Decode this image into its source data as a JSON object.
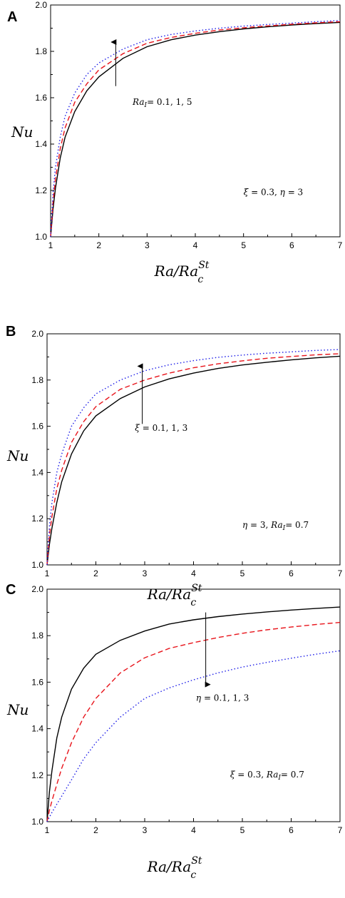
{
  "chart_data": [
    {
      "type": "line",
      "panel_label": "A",
      "xlabel": "Ra/Ra_c^St",
      "xlabel_main": "Ra/Ra",
      "xlabel_sub": "c",
      "xlabel_sup": "St",
      "ylabel": "Nu",
      "xlim": [
        1,
        7
      ],
      "ylim": [
        1.0,
        2.0
      ],
      "xticks": [
        "1",
        "2",
        "3",
        "4",
        "5",
        "6",
        "7"
      ],
      "yticks": [
        "1.0",
        "1.2",
        "1.4",
        "1.6",
        "1.8",
        "2.0"
      ],
      "annotation": {
        "var": "Ra",
        "sub": "I",
        "text": "= 0.1, 1, 5",
        "direction": "up"
      },
      "params": {
        "p1_sym": "ξ",
        "p1_text": " = 0.3,  ",
        "p2_sym": "η",
        "p2_sub": "",
        "p2_text": " = 3"
      },
      "x": [
        1,
        1.05,
        1.1,
        1.2,
        1.3,
        1.5,
        1.75,
        2,
        2.5,
        3,
        3.5,
        4,
        4.5,
        5,
        5.5,
        6,
        6.5,
        7
      ],
      "series": [
        {
          "color": "#000000",
          "dash": "solid",
          "values": [
            1.0,
            1.12,
            1.21,
            1.34,
            1.43,
            1.54,
            1.63,
            1.69,
            1.77,
            1.82,
            1.85,
            1.87,
            1.885,
            1.897,
            1.906,
            1.914,
            1.92,
            1.925
          ]
        },
        {
          "color": "#e8141b",
          "dash": "dashed",
          "values": [
            1.0,
            1.15,
            1.25,
            1.38,
            1.47,
            1.58,
            1.66,
            1.72,
            1.79,
            1.835,
            1.86,
            1.878,
            1.892,
            1.902,
            1.91,
            1.917,
            1.923,
            1.928
          ]
        },
        {
          "color": "#1d1de8",
          "dash": "dotted",
          "values": [
            1.0,
            1.19,
            1.3,
            1.43,
            1.52,
            1.62,
            1.7,
            1.75,
            1.81,
            1.85,
            1.873,
            1.888,
            1.9,
            1.909,
            1.916,
            1.922,
            1.928,
            1.933
          ]
        }
      ],
      "arrow": {
        "x": 2.35,
        "y_from": 1.65,
        "y_to": 1.84
      },
      "annotation_pos": {
        "x": 2.7,
        "y": 1.57
      },
      "params_pos": {
        "x": 5.0,
        "y": 1.18
      }
    },
    {
      "type": "line",
      "panel_label": "B",
      "xlabel": "Ra/Ra_c^St",
      "xlabel_main": "Ra/Ra",
      "xlabel_sub": "c",
      "xlabel_sup": "St",
      "ylabel": "Nu",
      "xlim": [
        1,
        7
      ],
      "ylim": [
        1.0,
        2.0
      ],
      "xticks": [
        "1",
        "2",
        "3",
        "4",
        "5",
        "6",
        "7"
      ],
      "yticks": [
        "1.0",
        "1.2",
        "1.4",
        "1.6",
        "1.8",
        "2.0"
      ],
      "annotation": {
        "var": "ξ",
        "sub": "",
        "text": " = 0.1, 1, 3",
        "direction": "up"
      },
      "params": {
        "p1_sym": "η",
        "p1_text": " = 3,  ",
        "p2_sym": "Ra",
        "p2_sub": "I",
        "p2_text": "= 0.7"
      },
      "x": [
        1,
        1.05,
        1.1,
        1.2,
        1.3,
        1.5,
        1.75,
        2,
        2.5,
        3,
        3.5,
        4,
        4.5,
        5,
        5.5,
        6,
        6.5,
        7
      ],
      "series": [
        {
          "color": "#000000",
          "dash": "solid",
          "values": [
            1.0,
            1.09,
            1.16,
            1.27,
            1.36,
            1.48,
            1.58,
            1.645,
            1.72,
            1.77,
            1.805,
            1.83,
            1.85,
            1.865,
            1.877,
            1.887,
            1.896,
            1.903
          ]
        },
        {
          "color": "#e8141b",
          "dash": "dashed",
          "values": [
            1.0,
            1.13,
            1.21,
            1.33,
            1.41,
            1.53,
            1.62,
            1.685,
            1.76,
            1.8,
            1.83,
            1.853,
            1.87,
            1.883,
            1.894,
            1.902,
            1.909,
            1.914
          ]
        },
        {
          "color": "#1d1de8",
          "dash": "dotted",
          "values": [
            1.0,
            1.17,
            1.27,
            1.4,
            1.48,
            1.6,
            1.68,
            1.74,
            1.8,
            1.84,
            1.866,
            1.884,
            1.898,
            1.908,
            1.916,
            1.922,
            1.928,
            1.932
          ]
        }
      ],
      "arrow": {
        "x": 2.95,
        "y_from": 1.61,
        "y_to": 1.86
      },
      "annotation_pos": {
        "x": 2.8,
        "y": 1.58
      },
      "params_pos": {
        "x": 5.0,
        "y": 1.16
      }
    },
    {
      "type": "line",
      "panel_label": "C",
      "xlabel": "Ra/Ra_c^St",
      "xlabel_main": "Ra/Ra",
      "xlabel_sub": "c",
      "xlabel_sup": "St",
      "ylabel": "Nu",
      "xlim": [
        1,
        7
      ],
      "ylim": [
        1.0,
        2.0
      ],
      "xticks": [
        "1",
        "2",
        "3",
        "4",
        "5",
        "6",
        "7"
      ],
      "yticks": [
        "1.0",
        "1.2",
        "1.4",
        "1.6",
        "1.8",
        "2.0"
      ],
      "annotation": {
        "var": "η",
        "sub": "",
        "text": " = 0.1, 1, 3",
        "direction": "down"
      },
      "params": {
        "p1_sym": "ξ",
        "p1_text": " = 0.3,  ",
        "p2_sym": "Ra",
        "p2_sub": "I",
        "p2_text": "= 0.7"
      },
      "x": [
        1,
        1.05,
        1.1,
        1.2,
        1.3,
        1.5,
        1.75,
        2,
        2.5,
        3,
        3.5,
        4,
        4.5,
        5,
        5.5,
        6,
        6.5,
        7
      ],
      "series": [
        {
          "color": "#000000",
          "dash": "solid",
          "values": [
            1.0,
            1.13,
            1.22,
            1.36,
            1.45,
            1.57,
            1.66,
            1.72,
            1.78,
            1.82,
            1.85,
            1.868,
            1.882,
            1.893,
            1.902,
            1.91,
            1.917,
            1.923
          ]
        },
        {
          "color": "#e8141b",
          "dash": "dashed",
          "values": [
            1.0,
            1.05,
            1.09,
            1.16,
            1.23,
            1.34,
            1.45,
            1.53,
            1.64,
            1.705,
            1.745,
            1.77,
            1.792,
            1.81,
            1.825,
            1.837,
            1.848,
            1.857
          ]
        },
        {
          "color": "#1d1de8",
          "dash": "dotted",
          "values": [
            1.0,
            1.02,
            1.04,
            1.075,
            1.11,
            1.18,
            1.27,
            1.34,
            1.45,
            1.53,
            1.575,
            1.61,
            1.64,
            1.665,
            1.685,
            1.703,
            1.72,
            1.735
          ]
        }
      ],
      "arrow": {
        "x": 4.25,
        "y_from": 1.9,
        "y_to": 1.59
      },
      "annotation_pos": {
        "x": 4.05,
        "y": 1.52
      },
      "params_pos": {
        "x": 4.75,
        "y": 1.19
      }
    }
  ]
}
